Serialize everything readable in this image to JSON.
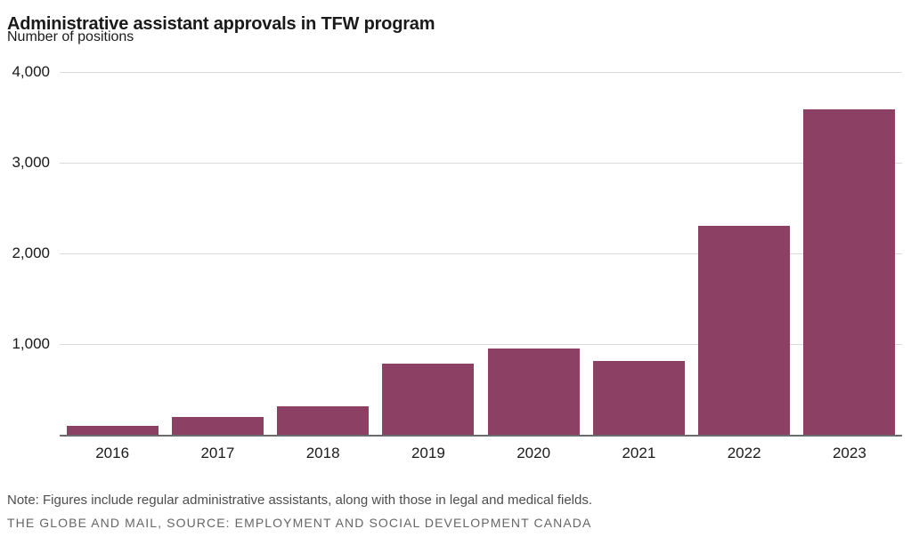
{
  "chart": {
    "title": "Administrative assistant approvals in TFW program",
    "subtitle": "Number of positions"
  },
  "footer": {
    "note": "Note: Figures include regular administrative assistants, along with those in legal and medical fields.",
    "source": "THE GLOBE AND MAIL, SOURCE: EMPLOYMENT AND SOCIAL DEVELOPMENT CANADA"
  },
  "chart_data": {
    "type": "bar",
    "title": "Administrative assistant approvals in TFW program",
    "xlabel": "",
    "ylabel": "Number of positions",
    "categories": [
      "2016",
      "2017",
      "2018",
      "2019",
      "2020",
      "2021",
      "2022",
      "2023"
    ],
    "values": [
      100,
      200,
      310,
      780,
      950,
      815,
      2300,
      3590
    ],
    "ylim": [
      0,
      4000
    ],
    "yticks": [
      {
        "value": 4000,
        "label": "4,000"
      },
      {
        "value": 3000,
        "label": "3,000"
      },
      {
        "value": 2000,
        "label": "2,000"
      },
      {
        "value": 1000,
        "label": "1,000"
      }
    ],
    "grid": true,
    "legend": false,
    "bar_color": "#8c4164",
    "gridline_color": "#d9d9d9",
    "axis_color": "#6b6c6e"
  }
}
